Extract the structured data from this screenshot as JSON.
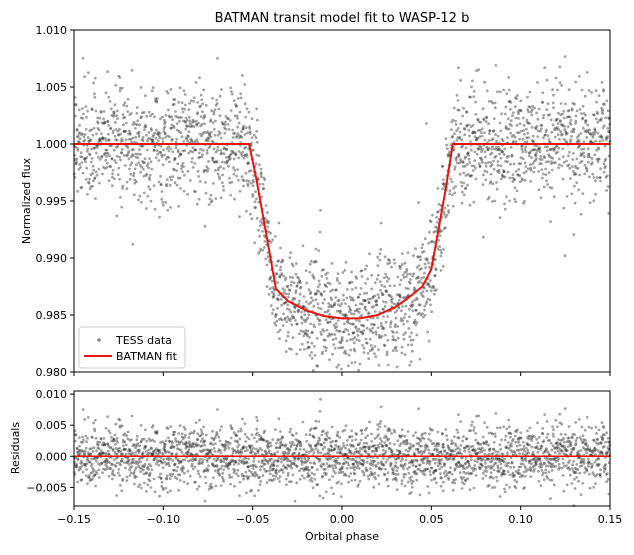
{
  "chart_data": [
    {
      "id": "top",
      "type": "scatter+line",
      "title": "BATMAN transit model fit to WASP-12 b",
      "xlabel": "",
      "ylabel": "Normalized flux",
      "xlim": [
        -0.15,
        0.15
      ],
      "ylim": [
        0.98,
        1.01
      ],
      "xticks": [
        -0.15,
        -0.1,
        -0.05,
        0.0,
        0.05,
        0.1,
        0.15
      ],
      "xtick_labels": [],
      "yticks": [
        0.98,
        0.985,
        0.99,
        0.995,
        1.0,
        1.005,
        1.01
      ],
      "ytick_labels": [
        "0.980",
        "0.985",
        "0.990",
        "0.995",
        "1.000",
        "1.005",
        "1.010"
      ],
      "legend": {
        "position": "lower-left",
        "entries": [
          "TESS data",
          "BATMAN fit"
        ]
      },
      "series": [
        {
          "name": "TESS data",
          "kind": "scatter",
          "color": "#333333",
          "opacity": 0.45,
          "model": "transit",
          "n_points": 2600,
          "noise_sigma": 0.0024
        },
        {
          "name": "BATMAN fit",
          "kind": "line",
          "color": "#e8150e",
          "x": [
            -0.15,
            -0.052,
            -0.048,
            -0.044,
            -0.04,
            -0.037,
            -0.03,
            -0.02,
            -0.01,
            0.0,
            0.01,
            0.02,
            0.03,
            0.037,
            0.045,
            0.05,
            0.054,
            0.058,
            0.062,
            0.15
          ],
          "y": [
            1.0,
            1.0,
            0.997,
            0.9935,
            0.99,
            0.9873,
            0.9862,
            0.9854,
            0.9849,
            0.9847,
            0.9847,
            0.985,
            0.9857,
            0.9865,
            0.9875,
            0.989,
            0.9925,
            0.996,
            1.0,
            1.0
          ]
        }
      ]
    },
    {
      "id": "bottom",
      "type": "scatter+line",
      "title": "",
      "xlabel": "Orbital phase",
      "ylabel": "Residuals",
      "xlim": [
        -0.15,
        0.15
      ],
      "ylim": [
        -0.008,
        0.0105
      ],
      "xticks": [
        -0.15,
        -0.1,
        -0.05,
        0.0,
        0.05,
        0.1,
        0.15
      ],
      "xtick_labels": [
        "−0.15",
        "−0.10",
        "−0.05",
        "0.00",
        "0.05",
        "0.10",
        "0.15"
      ],
      "yticks": [
        -0.005,
        0.0,
        0.005,
        0.01
      ],
      "ytick_labels": [
        "−0.005",
        "0.000",
        "0.005",
        "0.010"
      ],
      "series": [
        {
          "name": "Residuals",
          "kind": "scatter",
          "color": "#333333",
          "opacity": 0.45,
          "model": "noise",
          "n_points": 2600,
          "noise_sigma": 0.0024
        },
        {
          "name": "Zero line",
          "kind": "line",
          "color": "#e8150e",
          "x": [
            -0.15,
            0.15
          ],
          "y": [
            0.0,
            0.0
          ]
        }
      ]
    }
  ],
  "colors": {
    "axes": "#000000",
    "data": "#333333",
    "fit": "#e8150e",
    "background": "#ffffff"
  }
}
